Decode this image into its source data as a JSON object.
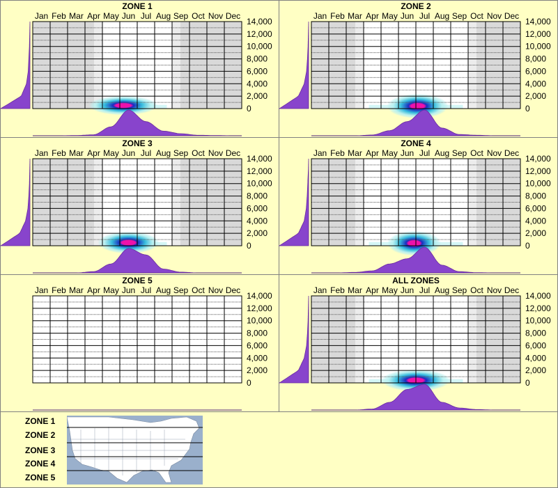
{
  "months": [
    "Jan",
    "Feb",
    "Mar",
    "Apr",
    "May",
    "Jun",
    "Jul",
    "Aug",
    "Sep",
    "Oct",
    "Nov",
    "Dec"
  ],
  "y_ticks": [
    "14,000",
    "12,000",
    "10,000",
    "8,000",
    "6,000",
    "4,000",
    "2,000",
    "0"
  ],
  "colors": {
    "background": "#ffffc4",
    "grid_fill": "#ffffff",
    "grey_fill": "#d9d9d9",
    "light_grey_fill": "#ececec",
    "density_fill": "#8844cc",
    "heat_outer": "#b8f0f0",
    "heat_mid": "#33bbdd",
    "heat_inner": "#1a2cbf",
    "heat_core": "#ee11aa",
    "map_water": "#9ab0cc",
    "map_land": "#ffffff"
  },
  "chart_data": [
    {
      "type": "heatmap",
      "title": "ZONE 1",
      "x": [
        "Jan",
        "Feb",
        "Mar",
        "Apr",
        "May",
        "Jun",
        "Jul",
        "Aug",
        "Sep",
        "Oct",
        "Nov",
        "Dec"
      ],
      "ylim": [
        0,
        14000
      ],
      "active_months": [
        4,
        8
      ],
      "peak": {
        "month": 5.2,
        "elevation": 500,
        "month_spread": 0.9,
        "elev_spread": 700
      },
      "month_density": [
        0.0,
        0.0,
        0.01,
        0.04,
        0.35,
        1.0,
        0.55,
        0.18,
        0.08,
        0.02,
        0.01,
        0.0
      ],
      "elevation_density": [
        1.0,
        0.3,
        0.12,
        0.06,
        0.04,
        0.02,
        0.01,
        0.0
      ]
    },
    {
      "type": "heatmap",
      "title": "ZONE 2",
      "x": [
        "Jan",
        "Feb",
        "Mar",
        "Apr",
        "May",
        "Jun",
        "Jul",
        "Aug",
        "Sep",
        "Oct",
        "Nov",
        "Dec"
      ],
      "ylim": [
        0,
        14000
      ],
      "active_months": [
        3,
        9
      ],
      "peak": {
        "month": 6.1,
        "elevation": 400,
        "month_spread": 0.8,
        "elev_spread": 900
      },
      "month_density": [
        0.0,
        0.0,
        0.0,
        0.03,
        0.2,
        0.55,
        1.0,
        0.3,
        0.05,
        0.02,
        0.0,
        0.0
      ],
      "elevation_density": [
        1.0,
        0.35,
        0.15,
        0.07,
        0.04,
        0.02,
        0.01,
        0.0
      ]
    },
    {
      "type": "heatmap",
      "title": "ZONE 3",
      "x": [
        "Jan",
        "Feb",
        "Mar",
        "Apr",
        "May",
        "Jun",
        "Jul",
        "Aug",
        "Sep",
        "Oct",
        "Nov",
        "Dec"
      ],
      "ylim": [
        0,
        14000
      ],
      "active_months": [
        4,
        8
      ],
      "peak": {
        "month": 5.5,
        "elevation": 500,
        "month_spread": 0.8,
        "elev_spread": 800
      },
      "month_density": [
        0.0,
        0.0,
        0.0,
        0.05,
        0.35,
        0.95,
        0.7,
        0.15,
        0.03,
        0.0,
        0.0,
        0.0
      ],
      "elevation_density": [
        1.0,
        0.35,
        0.15,
        0.07,
        0.04,
        0.02,
        0.01,
        0.0
      ]
    },
    {
      "type": "heatmap",
      "title": "ZONE 4",
      "x": [
        "Jan",
        "Feb",
        "Mar",
        "Apr",
        "May",
        "Jun",
        "Jul",
        "Aug",
        "Sep",
        "Oct",
        "Nov",
        "Dec"
      ],
      "ylim": [
        0,
        14000
      ],
      "active_months": [
        3,
        9
      ],
      "peak": {
        "month": 5.9,
        "elevation": 400,
        "month_spread": 0.7,
        "elev_spread": 900
      },
      "month_density": [
        0.0,
        0.0,
        0.02,
        0.08,
        0.35,
        0.55,
        1.0,
        0.3,
        0.05,
        0.01,
        0.0,
        0.0
      ],
      "elevation_density": [
        1.0,
        0.35,
        0.15,
        0.08,
        0.05,
        0.03,
        0.01,
        0.0
      ]
    },
    {
      "type": "heatmap",
      "title": "ZONE 5",
      "x": [
        "Jan",
        "Feb",
        "Mar",
        "Apr",
        "May",
        "Jun",
        "Jul",
        "Aug",
        "Sep",
        "Oct",
        "Nov",
        "Dec"
      ],
      "ylim": [
        0,
        14000
      ],
      "active_months": [
        0,
        12
      ],
      "peak": null,
      "month_density": [
        0,
        0,
        0,
        0,
        0,
        0,
        0,
        0,
        0,
        0,
        0,
        0
      ],
      "elevation_density": [
        0,
        0,
        0,
        0,
        0,
        0,
        0,
        0
      ]
    },
    {
      "type": "heatmap",
      "title": "ALL ZONES",
      "x": [
        "Jan",
        "Feb",
        "Mar",
        "Apr",
        "May",
        "Jun",
        "Jul",
        "Aug",
        "Sep",
        "Oct",
        "Nov",
        "Dec"
      ],
      "ylim": [
        0,
        14000
      ],
      "active_months": [
        3,
        9
      ],
      "peak": {
        "month": 6.0,
        "elevation": 400,
        "month_spread": 0.9,
        "elev_spread": 800
      },
      "month_density": [
        0.0,
        0.0,
        0.0,
        0.04,
        0.3,
        0.8,
        1.0,
        0.3,
        0.08,
        0.02,
        0.0,
        0.0
      ],
      "elevation_density": [
        1.0,
        0.35,
        0.15,
        0.07,
        0.04,
        0.02,
        0.01,
        0.0
      ]
    }
  ],
  "legend": {
    "zones": [
      "ZONE 1",
      "ZONE 2",
      "ZONE 3",
      "ZONE 4",
      "ZONE 5"
    ]
  }
}
